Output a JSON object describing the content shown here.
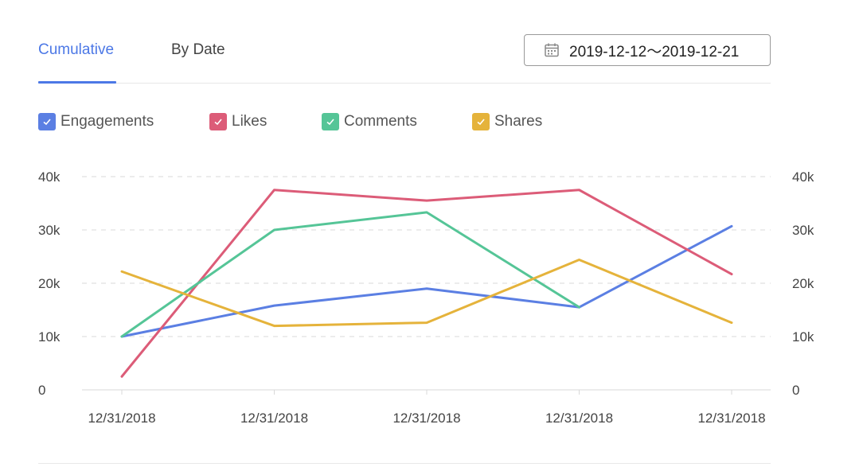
{
  "tabs": {
    "cumulative": "Cumulative",
    "by_date": "By Date"
  },
  "date_range": {
    "value": "2019-12-12～2019-12-21",
    "icon": "calendar-icon"
  },
  "colors": {
    "accent": "#4c78e6",
    "engagements": "#5b7fe3",
    "likes": "#dc5c78",
    "comments": "#55c597",
    "shares": "#e5b33b"
  },
  "chart_data": {
    "type": "line",
    "x": [
      "12/31/2018",
      "12/31/2018",
      "12/31/2018",
      "12/31/2018",
      "12/31/2018"
    ],
    "ylim": [
      0,
      40000
    ],
    "yticks": [
      "0",
      "10k",
      "20k",
      "30k",
      "40k"
    ],
    "grid": true,
    "legend_position": "top-left",
    "dual_y_axis": true,
    "series": [
      {
        "name": "Engagements",
        "color": "#5b7fe3",
        "values": [
          10000,
          15800,
          19000,
          15500,
          30700
        ]
      },
      {
        "name": "Likes",
        "color": "#dc5c78",
        "values": [
          2500,
          37500,
          35500,
          37500,
          21700
        ]
      },
      {
        "name": "Comments",
        "color": "#55c597",
        "values": [
          10000,
          30000,
          33300,
          15500,
          null
        ]
      },
      {
        "name": "Shares",
        "color": "#e5b33b",
        "values": [
          22200,
          12000,
          12600,
          24400,
          12600
        ]
      }
    ]
  }
}
